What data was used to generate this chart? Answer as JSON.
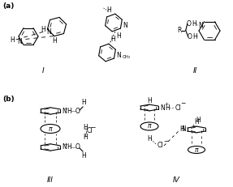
{
  "background": "#ffffff",
  "label_a": "(a)",
  "label_b": "(b)",
  "label_I": "I",
  "label_II": "II",
  "label_III": "III",
  "label_IV": "IV",
  "lw": 0.8,
  "fs": 6.5,
  "fs_small": 5.5,
  "fs_tiny": 4.5
}
